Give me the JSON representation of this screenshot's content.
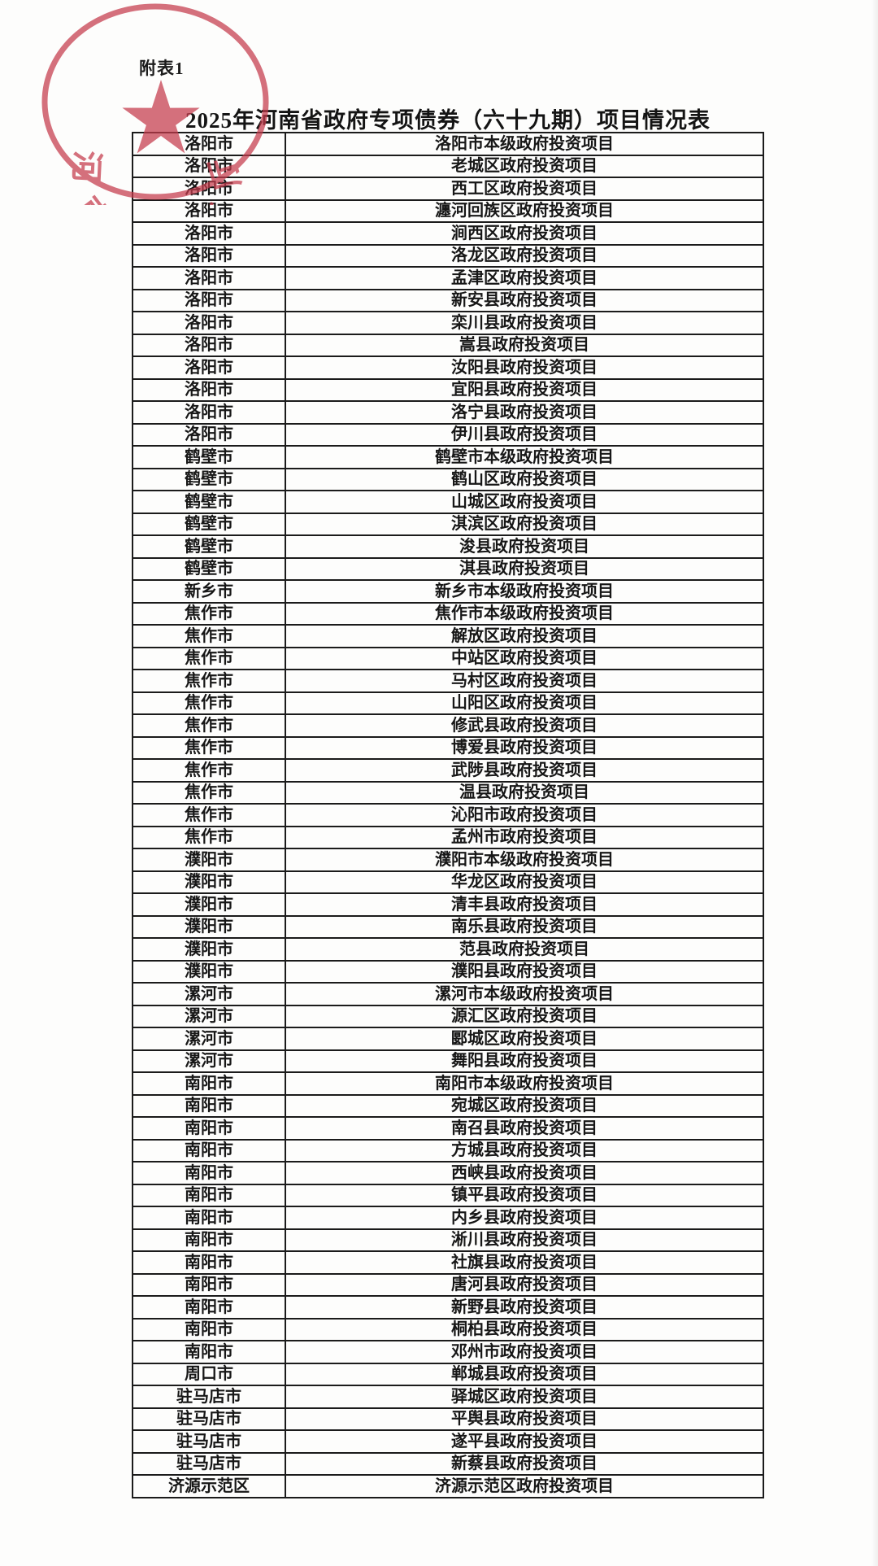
{
  "page": {
    "attachment_label": "附表1",
    "title": "2025年河南省政府专项债券（六十九期）项目情况表"
  },
  "seal": {
    "text": "河南省财政厅",
    "color": "#c53b4c"
  },
  "table": {
    "columns": [
      "city",
      "project"
    ],
    "rows": [
      [
        "洛阳市",
        "洛阳市本级政府投资项目"
      ],
      [
        "洛阳市",
        "老城区政府投资项目"
      ],
      [
        "洛阳市",
        "西工区政府投资项目"
      ],
      [
        "洛阳市",
        "瀍河回族区政府投资项目"
      ],
      [
        "洛阳市",
        "涧西区政府投资项目"
      ],
      [
        "洛阳市",
        "洛龙区政府投资项目"
      ],
      [
        "洛阳市",
        "孟津区政府投资项目"
      ],
      [
        "洛阳市",
        "新安县政府投资项目"
      ],
      [
        "洛阳市",
        "栾川县政府投资项目"
      ],
      [
        "洛阳市",
        "嵩县政府投资项目"
      ],
      [
        "洛阳市",
        "汝阳县政府投资项目"
      ],
      [
        "洛阳市",
        "宜阳县政府投资项目"
      ],
      [
        "洛阳市",
        "洛宁县政府投资项目"
      ],
      [
        "洛阳市",
        "伊川县政府投资项目"
      ],
      [
        "鹤壁市",
        "鹤壁市本级政府投资项目"
      ],
      [
        "鹤壁市",
        "鹤山区政府投资项目"
      ],
      [
        "鹤壁市",
        "山城区政府投资项目"
      ],
      [
        "鹤壁市",
        "淇滨区政府投资项目"
      ],
      [
        "鹤壁市",
        "浚县政府投资项目"
      ],
      [
        "鹤壁市",
        "淇县政府投资项目"
      ],
      [
        "新乡市",
        "新乡市本级政府投资项目"
      ],
      [
        "焦作市",
        "焦作市本级政府投资项目"
      ],
      [
        "焦作市",
        "解放区政府投资项目"
      ],
      [
        "焦作市",
        "中站区政府投资项目"
      ],
      [
        "焦作市",
        "马村区政府投资项目"
      ],
      [
        "焦作市",
        "山阳区政府投资项目"
      ],
      [
        "焦作市",
        "修武县政府投资项目"
      ],
      [
        "焦作市",
        "博爱县政府投资项目"
      ],
      [
        "焦作市",
        "武陟县政府投资项目"
      ],
      [
        "焦作市",
        "温县政府投资项目"
      ],
      [
        "焦作市",
        "沁阳市政府投资项目"
      ],
      [
        "焦作市",
        "孟州市政府投资项目"
      ],
      [
        "濮阳市",
        "濮阳市本级政府投资项目"
      ],
      [
        "濮阳市",
        "华龙区政府投资项目"
      ],
      [
        "濮阳市",
        "清丰县政府投资项目"
      ],
      [
        "濮阳市",
        "南乐县政府投资项目"
      ],
      [
        "濮阳市",
        "范县政府投资项目"
      ],
      [
        "濮阳市",
        "濮阳县政府投资项目"
      ],
      [
        "漯河市",
        "漯河市本级政府投资项目"
      ],
      [
        "漯河市",
        "源汇区政府投资项目"
      ],
      [
        "漯河市",
        "郾城区政府投资项目"
      ],
      [
        "漯河市",
        "舞阳县政府投资项目"
      ],
      [
        "南阳市",
        "南阳市本级政府投资项目"
      ],
      [
        "南阳市",
        "宛城区政府投资项目"
      ],
      [
        "南阳市",
        "南召县政府投资项目"
      ],
      [
        "南阳市",
        "方城县政府投资项目"
      ],
      [
        "南阳市",
        "西峡县政府投资项目"
      ],
      [
        "南阳市",
        "镇平县政府投资项目"
      ],
      [
        "南阳市",
        "内乡县政府投资项目"
      ],
      [
        "南阳市",
        "淅川县政府投资项目"
      ],
      [
        "南阳市",
        "社旗县政府投资项目"
      ],
      [
        "南阳市",
        "唐河县政府投资项目"
      ],
      [
        "南阳市",
        "新野县政府投资项目"
      ],
      [
        "南阳市",
        "桐柏县政府投资项目"
      ],
      [
        "南阳市",
        "邓州市政府投资项目"
      ],
      [
        "周口市",
        "郸城县政府投资项目"
      ],
      [
        "驻马店市",
        "驿城区政府投资项目"
      ],
      [
        "驻马店市",
        "平舆县政府投资项目"
      ],
      [
        "驻马店市",
        "遂平县政府投资项目"
      ],
      [
        "驻马店市",
        "新蔡县政府投资项目"
      ],
      [
        "济源示范区",
        "济源示范区政府投资项目"
      ]
    ]
  }
}
